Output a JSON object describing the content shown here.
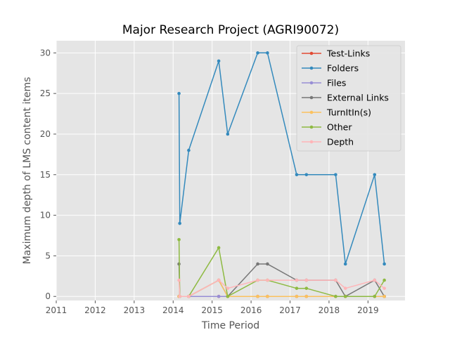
{
  "chart_data": {
    "type": "line",
    "title": "Major Research Project (AGRI90072)",
    "xlabel": "Time Period",
    "ylabel": "Maximum depth of LMS content items",
    "xlim": [
      2011.0,
      2019.95
    ],
    "ylim": [
      -0.5,
      31.5
    ],
    "x_ticks": [
      2011,
      2012,
      2013,
      2014,
      2015,
      2016,
      2017,
      2018,
      2019
    ],
    "x_tick_labels": [
      "2011",
      "2012",
      "2013",
      "2014",
      "2015",
      "2016",
      "2017",
      "2018",
      "2019"
    ],
    "y_ticks": [
      0,
      5,
      10,
      15,
      20,
      25,
      30
    ],
    "y_tick_labels": [
      "0",
      "5",
      "10",
      "15",
      "20",
      "25",
      "30"
    ],
    "grid": true,
    "legend_position": "upper right",
    "x": [
      2014.15,
      2014.17,
      2014.4,
      2015.17,
      2015.4,
      2016.17,
      2016.42,
      2017.17,
      2017.42,
      2018.17,
      2018.42,
      2019.17,
      2019.42
    ],
    "series": [
      {
        "name": "Test-Links",
        "color": "#E24A33",
        "values": [
          0,
          0,
          0,
          0,
          0,
          0,
          0,
          0,
          0,
          0,
          0,
          0,
          0
        ]
      },
      {
        "name": "Folders",
        "color": "#348ABD",
        "values": [
          25,
          9,
          18,
          29,
          20,
          30,
          30,
          15,
          15,
          15,
          4,
          15,
          4
        ]
      },
      {
        "name": "Files",
        "color": "#988ED5",
        "values": [
          0,
          0,
          0,
          0,
          0,
          0,
          0,
          0,
          0,
          0,
          0,
          0,
          0
        ]
      },
      {
        "name": "External Links",
        "color": "#777777",
        "values": [
          4,
          0,
          0,
          2,
          0,
          4,
          4,
          2,
          2,
          2,
          0,
          2,
          0
        ]
      },
      {
        "name": "TurnItIn(s)",
        "color": "#FBC15E",
        "values": [
          0,
          0,
          0,
          2,
          0,
          0,
          0,
          0,
          0,
          0,
          0,
          0,
          0
        ]
      },
      {
        "name": "Other",
        "color": "#8EBA42",
        "values": [
          7,
          0,
          0,
          6,
          0,
          2,
          2,
          1,
          1,
          0,
          0,
          0,
          2
        ]
      },
      {
        "name": "Depth",
        "color": "#FFB5B8",
        "values": [
          2,
          0,
          0,
          2,
          1,
          2,
          2,
          2,
          2,
          2,
          1,
          2,
          1
        ]
      }
    ]
  }
}
